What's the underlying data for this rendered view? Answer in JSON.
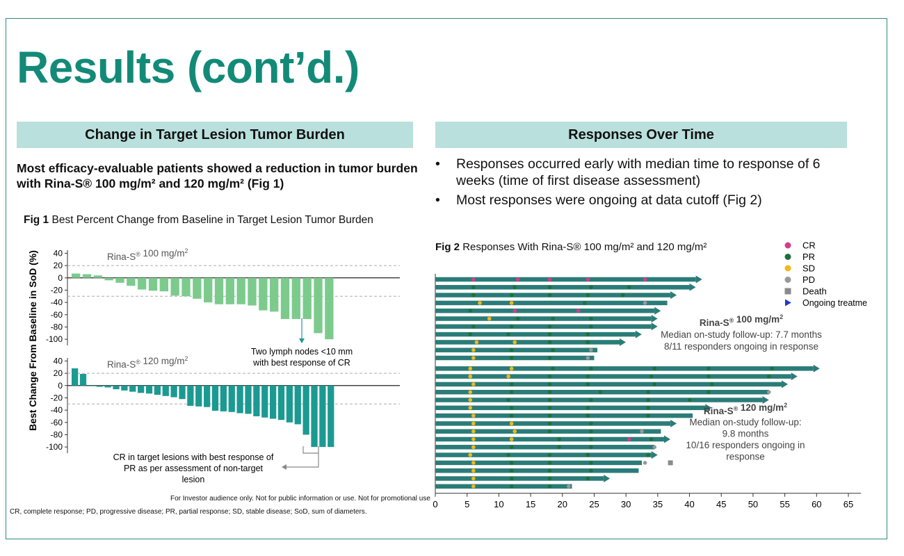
{
  "slide": {
    "title": "Results (cont’d.)",
    "left_header": "Change in Target Lesion Tumor Burden",
    "right_header": "Responses Over Time",
    "lead_text": "Most efficacy-evaluable patients showed a reduction in tumor burden with Rina-S® 100 mg/m² and 120 mg/m² (Fig 1)",
    "bullets": [
      "Responses occurred early with median time to response of 6 weeks (time of first disease assessment)",
      "Most responses were ongoing at data cutoff (Fig 2)"
    ],
    "bullet_char": "•",
    "footnote_investor": "For Investor audience only. Not for public information or use. Not for promotional use",
    "footnote_abbrev": "CR, complete response; PD, progressive disease; PR, partial response; SD, stable disease; SoD, sum of diameters.",
    "colors": {
      "accent": "#138a78",
      "band": "#b9e0dc",
      "light_green": "#7ccb8d",
      "teal": "#1b9a92",
      "arrow": "#2b7c78"
    }
  },
  "chart_data": [
    {
      "type": "bar",
      "fig_label": "Fig 1",
      "title": "Best Percent Change from Baseline in Target Lesion Tumor Burden",
      "ylabel": "Best Change From Baseline in SoD (%)",
      "yticks": [
        "40",
        "20",
        "0",
        "-20",
        "-40",
        "-60",
        "-80",
        "-100"
      ],
      "panels": [
        {
          "name": "Rina-S® 100 mg/m²",
          "color": "#7ccb8d",
          "ylim": [
            -110,
            45
          ],
          "reference_lines": [
            20,
            -30
          ],
          "values": [
            7,
            6,
            4,
            -4,
            -8,
            -13,
            -19,
            -21,
            -22,
            -29,
            -30,
            -34,
            -40,
            -43,
            -43,
            -43,
            -45,
            -53,
            -55,
            -67,
            -67,
            -67,
            -90,
            -100
          ],
          "annotation": "Two lymph nodes <10 mm with best response of CR"
        },
        {
          "name": "Rina-S® 120 mg/m²",
          "color": "#1b9a92",
          "ylim": [
            -110,
            45
          ],
          "reference_lines": [
            20,
            -30
          ],
          "values": [
            28,
            19,
            -1,
            -2,
            -3,
            -6,
            -8,
            -10,
            -12,
            -13,
            -15,
            -17,
            -19,
            -22,
            -33,
            -34,
            -35,
            -41,
            -42,
            -43,
            -45,
            -46,
            -50,
            -52,
            -54,
            -56,
            -60,
            -63,
            -80,
            -100,
            -100,
            -100
          ],
          "annotation": "CR in target lesions with best response of PR as per assessment of non-target lesion"
        }
      ]
    },
    {
      "type": "swimmer",
      "fig_label": "Fig 2",
      "title": "Responses With Rina-S® 100 mg/m² and 120 mg/m²",
      "xlim": [
        0,
        65
      ],
      "xticks": [
        "0",
        "5",
        "10",
        "15",
        "20",
        "25",
        "30",
        "35",
        "40",
        "45",
        "50",
        "55",
        "60",
        "65"
      ],
      "legend": [
        {
          "label": "CR",
          "shape": "circle",
          "color": "#d63c8e"
        },
        {
          "label": "PR",
          "shape": "circle",
          "color": "#1f6f3a"
        },
        {
          "label": "SD",
          "shape": "circle",
          "color": "#f2b817"
        },
        {
          "label": "PD",
          "shape": "circle",
          "color": "#999999"
        },
        {
          "label": "Death",
          "shape": "square",
          "color": "#8a8a8a"
        },
        {
          "label": "Ongoing treatme",
          "shape": "triangle",
          "color": "#1f3fbf"
        }
      ],
      "group_labels": [
        {
          "title": "Rina-S® 100 mg/m²",
          "lines": [
            "Median on-study follow-up: 7.7 months",
            "8/11 responders ongoing in response"
          ]
        },
        {
          "title": "Rina-S® 120 mg/m²",
          "lines": [
            "Median on-study follow-up:",
            "9.8 months",
            "10/16 responders ongoing in",
            "response"
          ]
        }
      ],
      "rows": [
        {
          "end": 41,
          "arrow": true,
          "events": [
            [
              6,
              "CR"
            ],
            [
              13,
              "CR"
            ],
            [
              18,
              "CR"
            ],
            [
              24,
              "CR"
            ],
            [
              33,
              "CR"
            ]
          ]
        },
        {
          "end": 40,
          "arrow": true,
          "events": [
            [
              6,
              "PR"
            ],
            [
              12.5,
              "PR"
            ],
            [
              18,
              "PR"
            ],
            [
              24.5,
              "PR"
            ],
            [
              30.5,
              "PR"
            ]
          ]
        },
        {
          "end": 37,
          "arrow": true,
          "events": [
            [
              6,
              "PR"
            ],
            [
              12,
              "PR"
            ],
            [
              18,
              "PR"
            ],
            [
              24,
              "PR"
            ],
            [
              29.5,
              "PR"
            ]
          ]
        },
        {
          "end": 36.5,
          "arrow": false,
          "events": [
            [
              7,
              "SD"
            ],
            [
              12,
              "SD"
            ],
            [
              23.5,
              "PR"
            ],
            [
              33,
              "PD"
            ]
          ]
        },
        {
          "end": 34.5,
          "arrow": true,
          "events": [
            [
              5.5,
              "PR"
            ],
            [
              12.5,
              "CR"
            ],
            [
              22.5,
              "CR"
            ]
          ]
        },
        {
          "end": 34,
          "arrow": true,
          "events": [
            [
              8.5,
              "SD"
            ],
            [
              13,
              "PR"
            ],
            [
              18.5,
              "PR"
            ],
            [
              24.5,
              "PR"
            ]
          ]
        },
        {
          "end": 34,
          "arrow": true,
          "events": [
            [
              6,
              "PR"
            ],
            [
              12,
              "PR"
            ],
            [
              18,
              "PR"
            ],
            [
              24.5,
              "PR"
            ]
          ]
        },
        {
          "end": 31.5,
          "arrow": true,
          "events": [
            [
              5.5,
              "PR"
            ],
            [
              11.5,
              "PR"
            ],
            [
              18,
              "PR"
            ],
            [
              24,
              "PR"
            ]
          ]
        },
        {
          "end": 29,
          "arrow": true,
          "events": [
            [
              6.5,
              "SD"
            ],
            [
              12.5,
              "SD"
            ],
            [
              18,
              "PR"
            ],
            [
              24,
              "PR"
            ]
          ]
        },
        {
          "end": 25.5,
          "arrow": false,
          "events": [
            [
              6,
              "SD"
            ],
            [
              12,
              "PR"
            ],
            [
              18.5,
              "PR"
            ],
            [
              24.5,
              "PD"
            ]
          ]
        },
        {
          "end": 25,
          "arrow": false,
          "events": [
            [
              6,
              "SD"
            ],
            [
              12,
              "PR"
            ],
            [
              18,
              "PR"
            ],
            [
              24,
              "PD"
            ]
          ]
        },
        {
          "end": 59.5,
          "arrow": true,
          "events": [
            [
              5.5,
              "SD"
            ],
            [
              12,
              "SD"
            ],
            [
              18.5,
              "PR"
            ],
            [
              24.5,
              "PR"
            ],
            [
              34.5,
              "PR"
            ],
            [
              43,
              "PR"
            ],
            [
              53,
              "PR"
            ]
          ]
        },
        {
          "end": 56,
          "arrow": true,
          "events": [
            [
              5.5,
              "SD"
            ],
            [
              11.5,
              "SD"
            ],
            [
              18,
              "PR"
            ],
            [
              24,
              "PR"
            ],
            [
              34,
              "PR"
            ],
            [
              43,
              "PR"
            ],
            [
              52.5,
              "PR"
            ]
          ]
        },
        {
          "end": 54.5,
          "arrow": true,
          "events": [
            [
              6,
              "SD"
            ],
            [
              12,
              "PR"
            ],
            [
              18,
              "PR"
            ],
            [
              24,
              "PR"
            ],
            [
              34.5,
              "PR"
            ],
            [
              43.5,
              "PR"
            ]
          ]
        },
        {
          "end": 52.5,
          "arrow": false,
          "events": [
            [
              5.5,
              "SD"
            ],
            [
              12,
              "PR"
            ],
            [
              18,
              "PR"
            ],
            [
              26,
              "PR"
            ],
            [
              33.5,
              "PR"
            ],
            [
              43,
              "PR"
            ],
            [
              52.5,
              "PD"
            ]
          ]
        },
        {
          "end": 51.5,
          "arrow": true,
          "events": [
            [
              5.5,
              "SD"
            ],
            [
              11.5,
              "PR"
            ],
            [
              18,
              "PR"
            ],
            [
              24.5,
              "PR"
            ],
            [
              33.5,
              "PR"
            ],
            [
              40,
              "PR"
            ]
          ]
        },
        {
          "end": 42.5,
          "arrow": true,
          "events": [
            [
              5.5,
              "SD"
            ],
            [
              12,
              "PR"
            ],
            [
              18,
              "PR"
            ],
            [
              24,
              "PR"
            ],
            [
              33.5,
              "PR"
            ]
          ]
        },
        {
          "end": 40.5,
          "arrow": false,
          "events": [
            [
              6,
              "SD"
            ],
            [
              12,
              "PR"
            ],
            [
              18,
              "PR"
            ],
            [
              24,
              "PR"
            ],
            [
              33.5,
              "PR"
            ]
          ]
        },
        {
          "end": 37,
          "arrow": true,
          "events": [
            [
              6,
              "SD"
            ],
            [
              12,
              "SD"
            ],
            [
              18,
              "PR"
            ],
            [
              24.5,
              "PR"
            ]
          ]
        },
        {
          "end": 35.5,
          "arrow": false,
          "events": [
            [
              6,
              "SD"
            ],
            [
              12.5,
              "SD"
            ],
            [
              18,
              "PR"
            ],
            [
              24.5,
              "PR"
            ],
            [
              32.5,
              "PD"
            ]
          ]
        },
        {
          "end": 36,
          "arrow": true,
          "events": [
            [
              6,
              "SD"
            ],
            [
              12,
              "SD"
            ],
            [
              19.5,
              "PR"
            ],
            [
              24.5,
              "PR"
            ],
            [
              30.5,
              "CR"
            ],
            [
              34,
              "PR"
            ]
          ]
        },
        {
          "end": 34.5,
          "arrow": false,
          "events": [
            [
              6,
              "SD"
            ],
            [
              12,
              "PR"
            ],
            [
              19.5,
              "PR"
            ],
            [
              24.5,
              "PR"
            ],
            [
              34.5,
              "PD"
            ]
          ]
        },
        {
          "end": 34,
          "arrow": true,
          "events": [
            [
              5.5,
              "SD"
            ],
            [
              11.5,
              "PR"
            ],
            [
              18,
              "PR"
            ],
            [
              24,
              "PR"
            ],
            [
              33.5,
              "PR"
            ]
          ]
        },
        {
          "end": 32.5,
          "arrow": false,
          "events": [
            [
              6,
              "SD"
            ],
            [
              12,
              "PR"
            ],
            [
              18,
              "PR"
            ],
            [
              24.5,
              "PR"
            ],
            [
              33,
              "PD"
            ]
          ],
          "death": 37
        },
        {
          "end": 32,
          "arrow": false,
          "events": [
            [
              6,
              "SD"
            ],
            [
              12,
              "PR"
            ],
            [
              18,
              "PR"
            ],
            [
              24.5,
              "PR"
            ]
          ]
        },
        {
          "end": 26.5,
          "arrow": true,
          "events": [
            [
              6,
              "SD"
            ],
            [
              12,
              "PR"
            ],
            [
              18,
              "PR"
            ],
            [
              24,
              "PR"
            ]
          ]
        },
        {
          "end": 21.5,
          "arrow": false,
          "events": [
            [
              6,
              "SD"
            ],
            [
              12,
              "PR"
            ],
            [
              18,
              "PR"
            ],
            [
              21,
              "PD"
            ]
          ]
        }
      ]
    }
  ]
}
